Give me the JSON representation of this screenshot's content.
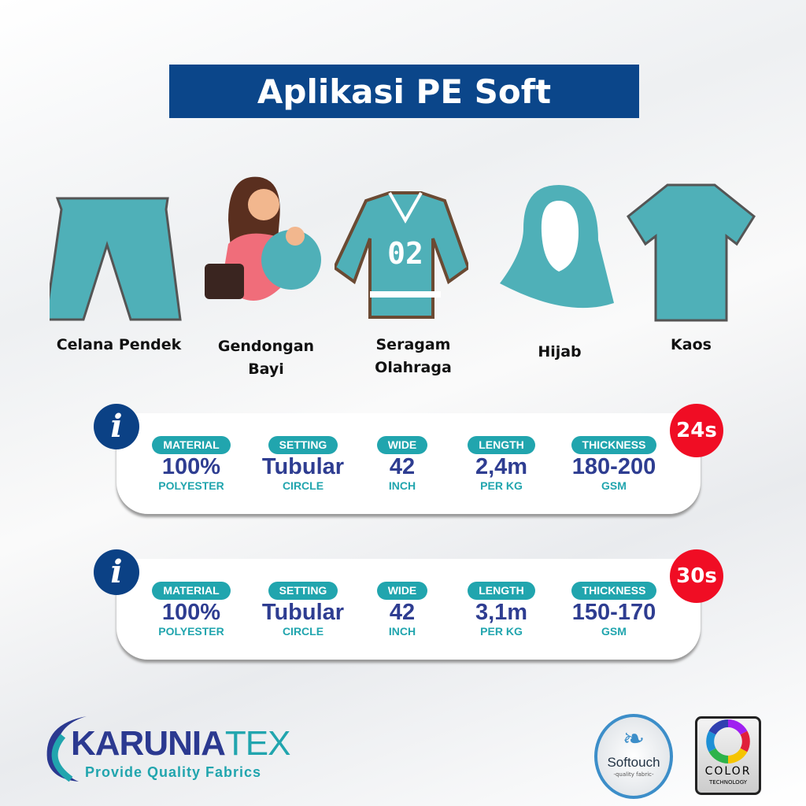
{
  "title": "Aplikasi PE Soft",
  "colors": {
    "title_bg": "#0b468a",
    "teal": "#21a5ae",
    "value": "#2e3d91",
    "badge": "#f00d24"
  },
  "applications": [
    {
      "label": "Celana Pendek",
      "icon": "shorts-icon"
    },
    {
      "label": "Gendongan Bayi",
      "icon": "baby-carrier-icon"
    },
    {
      "label": "Seragam Olahraga",
      "icon": "jersey-icon",
      "jersey_number": "02"
    },
    {
      "label": "Hijab",
      "icon": "hijab-icon"
    },
    {
      "label": "Kaos",
      "icon": "tshirt-icon"
    }
  ],
  "specs": [
    {
      "badge": "24s",
      "info_icon": "i",
      "items": [
        {
          "label": "MATERIAL",
          "value": "100%",
          "unit": "POLYESTER"
        },
        {
          "label": "SETTING",
          "value": "Tubular",
          "unit": "CIRCLE"
        },
        {
          "label": "WIDE",
          "value": "42",
          "unit": "INCH"
        },
        {
          "label": "LENGTH",
          "value": "2,4m",
          "unit": "PER KG"
        },
        {
          "label": "THICKNESS",
          "value": "180-200",
          "unit": "GSM"
        }
      ]
    },
    {
      "badge": "30s",
      "info_icon": "i",
      "items": [
        {
          "label": "MATERIAL",
          "value": "100%",
          "unit": "POLYESTER"
        },
        {
          "label": "SETTING",
          "value": "Tubular",
          "unit": "CIRCLE"
        },
        {
          "label": "WIDE",
          "value": "42",
          "unit": "INCH"
        },
        {
          "label": "LENGTH",
          "value": "3,1m",
          "unit": "PER KG"
        },
        {
          "label": "THICKNESS",
          "value": "150-170",
          "unit": "GSM"
        }
      ]
    }
  ],
  "brand": {
    "name_a": "KARUNIA",
    "name_b": "TEX",
    "tagline": "Provide Quality Fabrics"
  },
  "badges": {
    "softouch": "Softouch",
    "softouch_sub": "-quality fabric-",
    "color": "COLOR",
    "color_sub": "TECHNOLOGY"
  }
}
